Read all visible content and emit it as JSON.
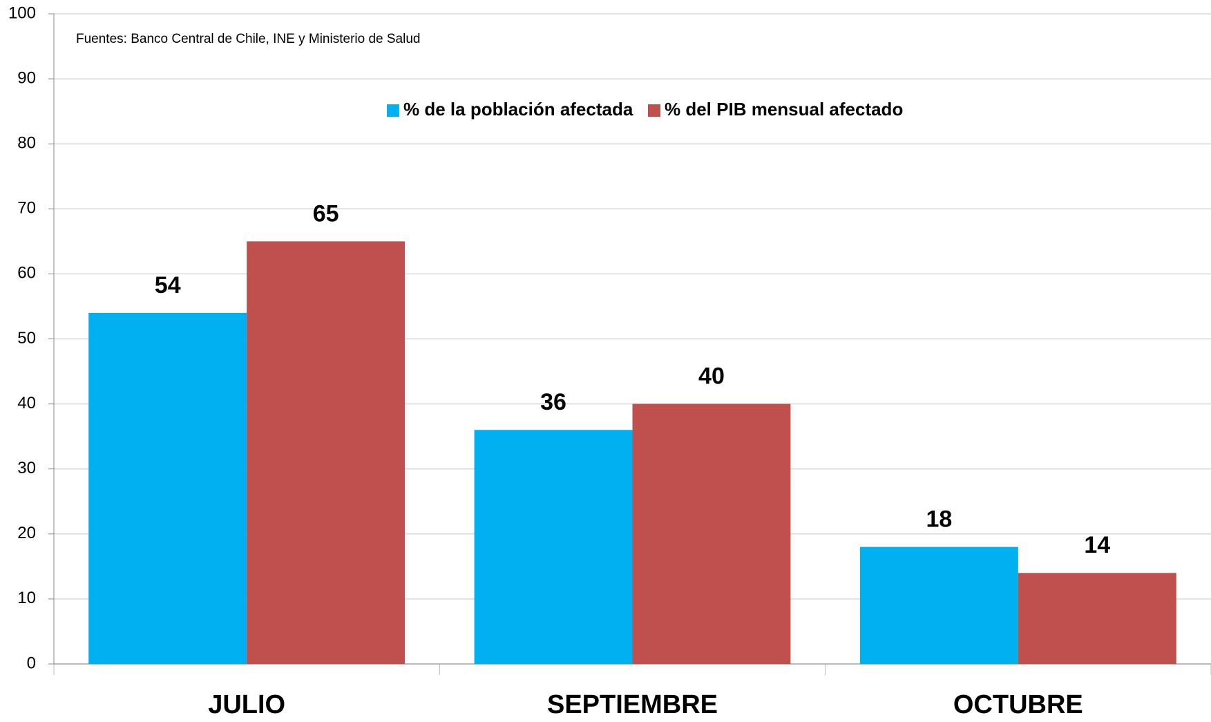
{
  "chart_data": {
    "type": "bar",
    "annotation": "Fuentes: Banco Central de Chile, INE y Ministerio de Salud",
    "categories": [
      "JULIO",
      "SEPTIEMBRE",
      "OCTUBRE"
    ],
    "series": [
      {
        "name": "% de la población afectada",
        "color": "#00b0f0",
        "values": [
          54,
          36,
          18
        ]
      },
      {
        "name": "% del PIB mensual afectado",
        "color": "#c0504d",
        "values": [
          65,
          40,
          14
        ]
      }
    ],
    "ylim": [
      0,
      100
    ],
    "yticks": [
      0,
      10,
      20,
      30,
      40,
      50,
      60,
      70,
      80,
      90,
      100
    ],
    "grid": true,
    "legend": "top"
  }
}
